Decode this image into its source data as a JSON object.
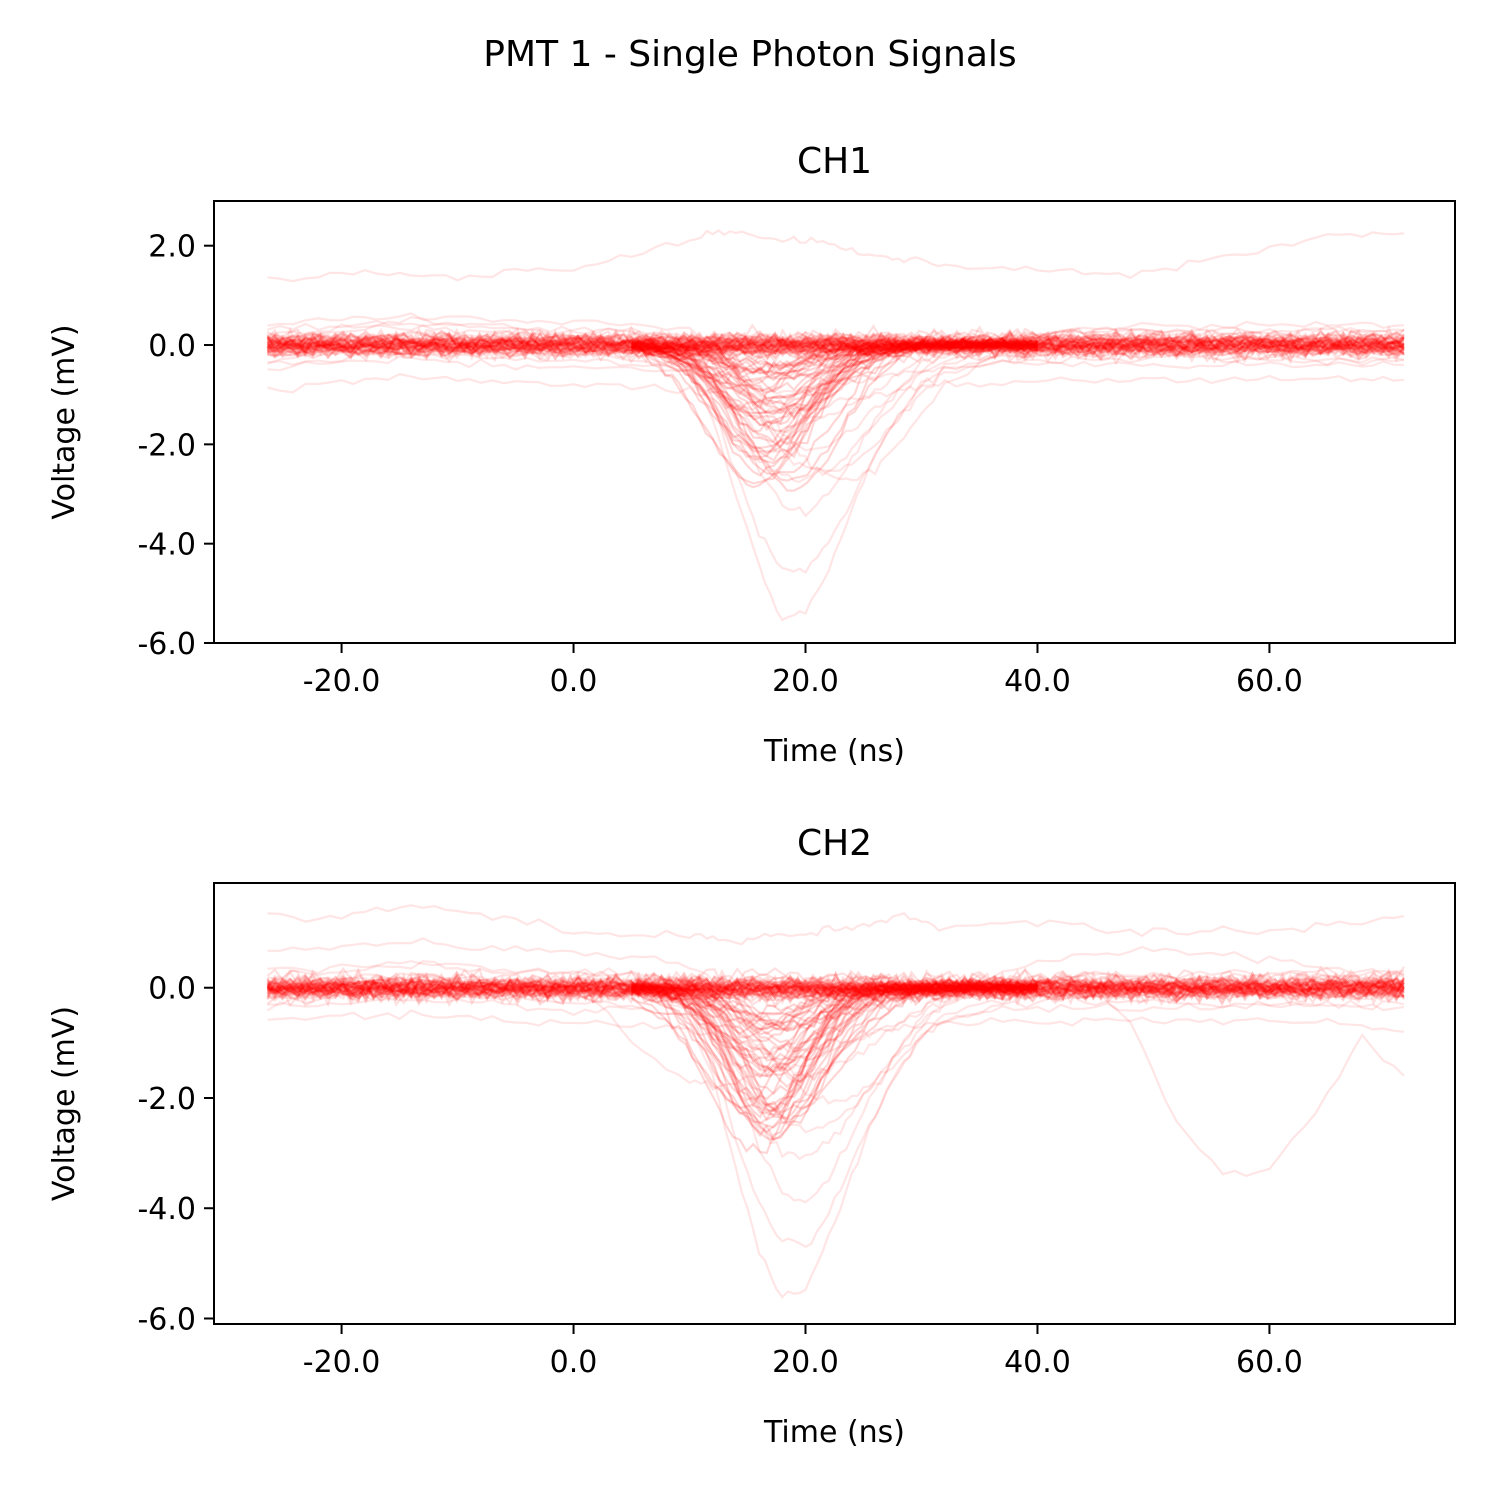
{
  "suptitle": "PMT 1 - Single Photon Signals",
  "colors": {
    "trace": "#ff0000",
    "axes": "#000000",
    "background": "#ffffff"
  },
  "chart_data": [
    {
      "type": "line",
      "title": "CH1",
      "xlabel": "Time (ns)",
      "ylabel": "Voltage (mV)",
      "xlim": [
        -31,
        76
      ],
      "ylim": [
        -6.0,
        2.9
      ],
      "xticks": [
        -20.0,
        0.0,
        20.0,
        40.0,
        60.0
      ],
      "xtick_labels": [
        "-20.0",
        "0.0",
        "20.0",
        "40.0",
        "60.0"
      ],
      "yticks": [
        -6.0,
        -4.0,
        -2.0,
        0.0,
        2.0
      ],
      "ytick_labels": [
        "-6.0",
        "-4.0",
        "-2.0",
        "0.0",
        "2.0"
      ],
      "grid": false,
      "legend": "none",
      "x": [
        -26.4,
        -22,
        -18,
        -14,
        -10,
        -6,
        -2,
        2,
        6,
        10,
        12,
        14,
        16,
        18,
        20,
        22,
        24,
        26,
        28,
        30,
        32,
        36,
        40,
        44,
        48,
        52,
        56,
        60,
        64,
        68,
        71.6
      ],
      "trace_opacity": 0.1,
      "series": [
        {
          "values": [
            -0.1,
            0.05,
            0.15,
            0.2,
            0.15,
            0.1,
            0.05,
            0.05,
            0.0,
            -0.05,
            -0.25,
            -0.45,
            -0.6,
            -0.65,
            -0.6,
            -0.5,
            -0.4,
            -0.3,
            -0.2,
            -0.1,
            -0.05,
            0.0,
            0.05,
            0.1,
            0.1,
            0.05,
            0.05,
            0.05,
            0.0,
            0.0,
            0.0
          ]
        },
        {
          "values": [
            -0.3,
            -0.2,
            -0.1,
            0.0,
            0.0,
            -0.1,
            -0.2,
            -0.2,
            -0.3,
            -0.6,
            -1.5,
            -3.0,
            -4.5,
            -5.5,
            -5.4,
            -4.5,
            -3.3,
            -2.2,
            -1.4,
            -0.8,
            -0.5,
            -0.3,
            -0.2,
            -0.2,
            -0.2,
            -0.2,
            -0.3,
            -0.3,
            -0.3,
            -0.3,
            -0.3
          ]
        },
        {
          "values": [
            0.2,
            0.3,
            0.4,
            0.5,
            0.45,
            0.4,
            0.3,
            0.3,
            0.3,
            0.1,
            -0.5,
            -1.5,
            -2.5,
            -3.2,
            -3.4,
            -3.0,
            -2.3,
            -1.5,
            -0.9,
            -0.4,
            -0.1,
            0.1,
            0.2,
            0.3,
            0.3,
            0.3,
            0.3,
            0.3,
            0.3,
            0.3,
            0.3
          ]
        },
        {
          "values": [
            0.0,
            0.1,
            0.2,
            0.2,
            0.2,
            0.1,
            0.0,
            0.0,
            -0.1,
            -0.3,
            -0.8,
            -1.6,
            -2.3,
            -2.6,
            -2.7,
            -2.5,
            -2.1,
            -1.6,
            -1.1,
            -0.6,
            -0.3,
            -0.1,
            0.0,
            0.05,
            0.1,
            0.1,
            0.1,
            0.1,
            0.1,
            0.1,
            0.1
          ]
        },
        {
          "values": [
            -0.4,
            -0.3,
            -0.2,
            -0.15,
            -0.2,
            -0.25,
            -0.3,
            -0.3,
            -0.35,
            -0.5,
            -0.8,
            -1.3,
            -1.8,
            -2.2,
            -2.5,
            -2.6,
            -2.4,
            -2.0,
            -1.5,
            -1.0,
            -0.6,
            -0.4,
            -0.3,
            -0.3,
            -0.3,
            -0.3,
            -0.3,
            -0.3,
            -0.3,
            -0.3,
            -0.3
          ]
        },
        {
          "values": [
            0.3,
            0.35,
            0.4,
            0.45,
            0.4,
            0.35,
            0.3,
            0.3,
            0.25,
            0.1,
            -0.2,
            -0.6,
            -1.0,
            -1.3,
            -1.5,
            -1.4,
            -1.2,
            -0.9,
            -0.6,
            -0.3,
            -0.1,
            0.1,
            0.2,
            0.25,
            0.3,
            0.3,
            0.3,
            0.3,
            0.3,
            0.3,
            0.3
          ]
        },
        {
          "values": [
            -0.2,
            -0.1,
            0.0,
            0.1,
            0.05,
            0.0,
            -0.1,
            -0.1,
            -0.15,
            -0.4,
            -1.2,
            -2.6,
            -3.8,
            -4.5,
            -4.6,
            -4.0,
            -3.1,
            -2.2,
            -1.4,
            -0.8,
            -0.4,
            -0.2,
            -0.1,
            -0.1,
            -0.1,
            -0.1,
            -0.1,
            -0.1,
            -0.1,
            -0.1,
            -0.1
          ]
        },
        {
          "values": [
            0.1,
            0.2,
            0.3,
            0.35,
            0.3,
            0.25,
            0.15,
            0.15,
            0.1,
            0.0,
            -0.3,
            -0.8,
            -1.4,
            -1.9,
            -2.1,
            -2.0,
            -1.7,
            -1.3,
            -0.9,
            -0.5,
            -0.2,
            0.0,
            0.1,
            0.15,
            0.2,
            0.2,
            0.2,
            0.2,
            0.2,
            0.2,
            0.2
          ]
        },
        {
          "values": [
            -0.5,
            -0.4,
            -0.3,
            -0.3,
            -0.35,
            -0.4,
            -0.45,
            -0.45,
            -0.5,
            -0.55,
            -0.65,
            -0.8,
            -0.9,
            -0.95,
            -0.9,
            -0.85,
            -0.75,
            -0.65,
            -0.55,
            -0.5,
            -0.45,
            -0.4,
            -0.4,
            -0.4,
            -0.4,
            -0.4,
            -0.4,
            -0.4,
            -0.4,
            -0.4,
            -0.4
          ]
        },
        {
          "values": [
            0.4,
            0.5,
            0.55,
            0.6,
            0.55,
            0.5,
            0.45,
            0.45,
            0.4,
            0.3,
            0.0,
            -0.5,
            -1.2,
            -1.8,
            -2.3,
            -2.6,
            -2.7,
            -2.5,
            -2.0,
            -1.4,
            -0.8,
            -0.2,
            0.2,
            0.35,
            0.4,
            0.4,
            0.4,
            0.4,
            0.4,
            0.4,
            0.4
          ]
        },
        {
          "values": [
            1.3,
            1.35,
            1.5,
            1.4,
            1.35,
            1.45,
            1.5,
            1.6,
            1.9,
            2.1,
            2.25,
            2.3,
            2.2,
            2.1,
            2.15,
            2.0,
            1.9,
            1.8,
            1.75,
            1.7,
            1.6,
            1.55,
            1.5,
            1.45,
            1.4,
            1.6,
            1.8,
            2.0,
            2.15,
            2.25,
            2.25
          ]
        },
        {
          "values": [
            -0.9,
            -0.8,
            -0.7,
            -0.65,
            -0.7,
            -0.75,
            -0.8,
            -0.8,
            -0.85,
            -0.9,
            -1.0,
            -1.2,
            -1.3,
            -1.35,
            -1.3,
            -1.2,
            -1.1,
            -1.0,
            -0.9,
            -0.85,
            -0.8,
            -0.75,
            -0.7,
            -0.7,
            -0.7,
            -0.7,
            -0.7,
            -0.7,
            -0.7,
            -0.7,
            -0.7
          ]
        }
      ]
    },
    {
      "type": "line",
      "title": "CH2",
      "xlabel": "Time (ns)",
      "ylabel": "Voltage (mV)",
      "xlim": [
        -31,
        76
      ],
      "ylim": [
        -6.1,
        1.9
      ],
      "xticks": [
        -20.0,
        0.0,
        20.0,
        40.0,
        60.0
      ],
      "xtick_labels": [
        "-20.0",
        "0.0",
        "20.0",
        "40.0",
        "60.0"
      ],
      "yticks": [
        -6.0,
        -4.0,
        -2.0,
        0.0
      ],
      "ytick_labels": [
        "-6.0",
        "-4.0",
        "-2.0",
        "0.0"
      ],
      "grid": false,
      "legend": "none",
      "x": [
        -26.4,
        -22,
        -18,
        -14,
        -10,
        -6,
        -2,
        2,
        6,
        10,
        12,
        14,
        16,
        18,
        20,
        22,
        24,
        26,
        28,
        30,
        32,
        36,
        40,
        44,
        48,
        52,
        56,
        60,
        64,
        68,
        71.6
      ],
      "trace_opacity": 0.1,
      "series": [
        {
          "values": [
            -0.1,
            0.0,
            0.1,
            0.15,
            0.1,
            0.05,
            0.0,
            0.0,
            -0.05,
            -0.1,
            -0.3,
            -0.5,
            -0.65,
            -0.7,
            -0.65,
            -0.55,
            -0.45,
            -0.35,
            -0.25,
            -0.15,
            -0.1,
            0.0,
            0.05,
            0.05,
            0.05,
            0.0,
            0.0,
            0.0,
            0.0,
            0.0,
            0.0
          ]
        },
        {
          "values": [
            -0.3,
            -0.2,
            -0.1,
            -0.05,
            -0.1,
            -0.2,
            -0.25,
            -0.3,
            -0.35,
            -0.6,
            -1.6,
            -3.3,
            -4.8,
            -5.6,
            -5.5,
            -4.6,
            -3.4,
            -2.3,
            -1.5,
            -0.9,
            -0.6,
            -0.35,
            -0.25,
            -0.25,
            -0.25,
            -0.3,
            -0.3,
            -0.3,
            -0.3,
            -0.3,
            -0.3
          ]
        },
        {
          "values": [
            0.2,
            0.3,
            0.35,
            0.4,
            0.35,
            0.3,
            0.25,
            0.25,
            0.2,
            0.05,
            -0.6,
            -1.7,
            -2.9,
            -3.7,
            -3.9,
            -3.5,
            -2.7,
            -1.8,
            -1.1,
            -0.5,
            -0.2,
            0.05,
            0.15,
            0.2,
            0.2,
            0.2,
            0.2,
            0.2,
            0.2,
            0.2,
            0.2
          ]
        },
        {
          "values": [
            0.0,
            0.05,
            0.15,
            0.2,
            0.15,
            0.1,
            0.05,
            0.0,
            -0.05,
            -0.3,
            -0.9,
            -1.8,
            -2.6,
            -3.0,
            -3.1,
            -2.8,
            -2.3,
            -1.7,
            -1.1,
            -0.6,
            -0.3,
            -0.05,
            0.05,
            0.1,
            0.1,
            0.1,
            0.1,
            0.1,
            0.1,
            0.1,
            0.1
          ]
        },
        {
          "values": [
            -0.4,
            -0.3,
            -0.25,
            -0.2,
            -0.25,
            -0.3,
            -0.35,
            -0.4,
            -0.4,
            -0.5,
            -0.9,
            -1.4,
            -2.0,
            -2.4,
            -2.6,
            -2.5,
            -2.2,
            -1.8,
            -1.3,
            -0.9,
            -0.6,
            -0.4,
            -0.35,
            -0.35,
            -0.35,
            -0.35,
            -0.35,
            -0.35,
            -0.35,
            -0.35,
            -0.35
          ]
        },
        {
          "values": [
            0.3,
            0.35,
            0.4,
            0.45,
            0.4,
            0.35,
            0.3,
            0.3,
            0.25,
            0.1,
            -0.2,
            -0.7,
            -1.1,
            -1.4,
            -1.6,
            -1.5,
            -1.3,
            -1.0,
            -0.7,
            -0.4,
            -0.15,
            0.05,
            0.15,
            0.2,
            0.25,
            0.25,
            0.25,
            0.25,
            0.25,
            0.25,
            0.25
          ]
        },
        {
          "values": [
            -0.2,
            -0.1,
            0.0,
            0.05,
            0.0,
            -0.05,
            -0.1,
            -0.1,
            -0.15,
            -0.4,
            -1.3,
            -2.7,
            -3.9,
            -4.6,
            -4.7,
            -4.1,
            -3.2,
            -2.3,
            -1.5,
            -0.9,
            -0.5,
            -0.25,
            -0.15,
            -0.15,
            -0.15,
            -0.15,
            -0.15,
            -0.15,
            -0.15,
            -0.15,
            -0.15
          ]
        },
        {
          "values": [
            0.0,
            0.1,
            0.2,
            0.25,
            0.2,
            0.1,
            0.0,
            -0.3,
            -1.2,
            -1.7,
            -1.8,
            -1.7,
            -1.6,
            -1.5,
            -1.4,
            -1.2,
            -1.0,
            -0.8,
            -0.6,
            -0.4,
            -0.2,
            0.0,
            0.1,
            0.1,
            -0.6,
            -2.5,
            -3.4,
            -3.3,
            -2.3,
            -0.9,
            -1.6
          ]
        },
        {
          "values": [
            1.3,
            1.25,
            1.35,
            1.5,
            1.4,
            1.3,
            1.1,
            1.0,
            1.0,
            0.95,
            0.9,
            0.85,
            0.9,
            0.95,
            1.0,
            1.05,
            1.1,
            1.2,
            1.3,
            1.2,
            1.1,
            1.15,
            1.2,
            1.1,
            1.0,
            1.0,
            1.05,
            1.0,
            1.1,
            1.2,
            1.3
          ]
        },
        {
          "values": [
            0.7,
            0.75,
            0.8,
            0.8,
            0.75,
            0.7,
            0.65,
            0.6,
            0.55,
            0.4,
            0.1,
            -0.4,
            -1.0,
            -1.5,
            -1.9,
            -2.1,
            -2.0,
            -1.7,
            -1.2,
            -0.7,
            -0.3,
            0.2,
            0.5,
            0.6,
            0.65,
            0.65,
            0.6,
            0.5,
            0.4,
            0.3,
            0.3
          ]
        },
        {
          "values": [
            -0.6,
            -0.55,
            -0.5,
            -0.5,
            -0.55,
            -0.6,
            -0.65,
            -0.65,
            -0.7,
            -0.75,
            -0.85,
            -1.0,
            -1.1,
            -1.15,
            -1.1,
            -1.0,
            -0.9,
            -0.8,
            -0.75,
            -0.7,
            -0.65,
            -0.6,
            -0.6,
            -0.6,
            -0.6,
            -0.6,
            -0.6,
            -0.6,
            -0.6,
            -0.7,
            -0.8
          ]
        }
      ]
    }
  ]
}
